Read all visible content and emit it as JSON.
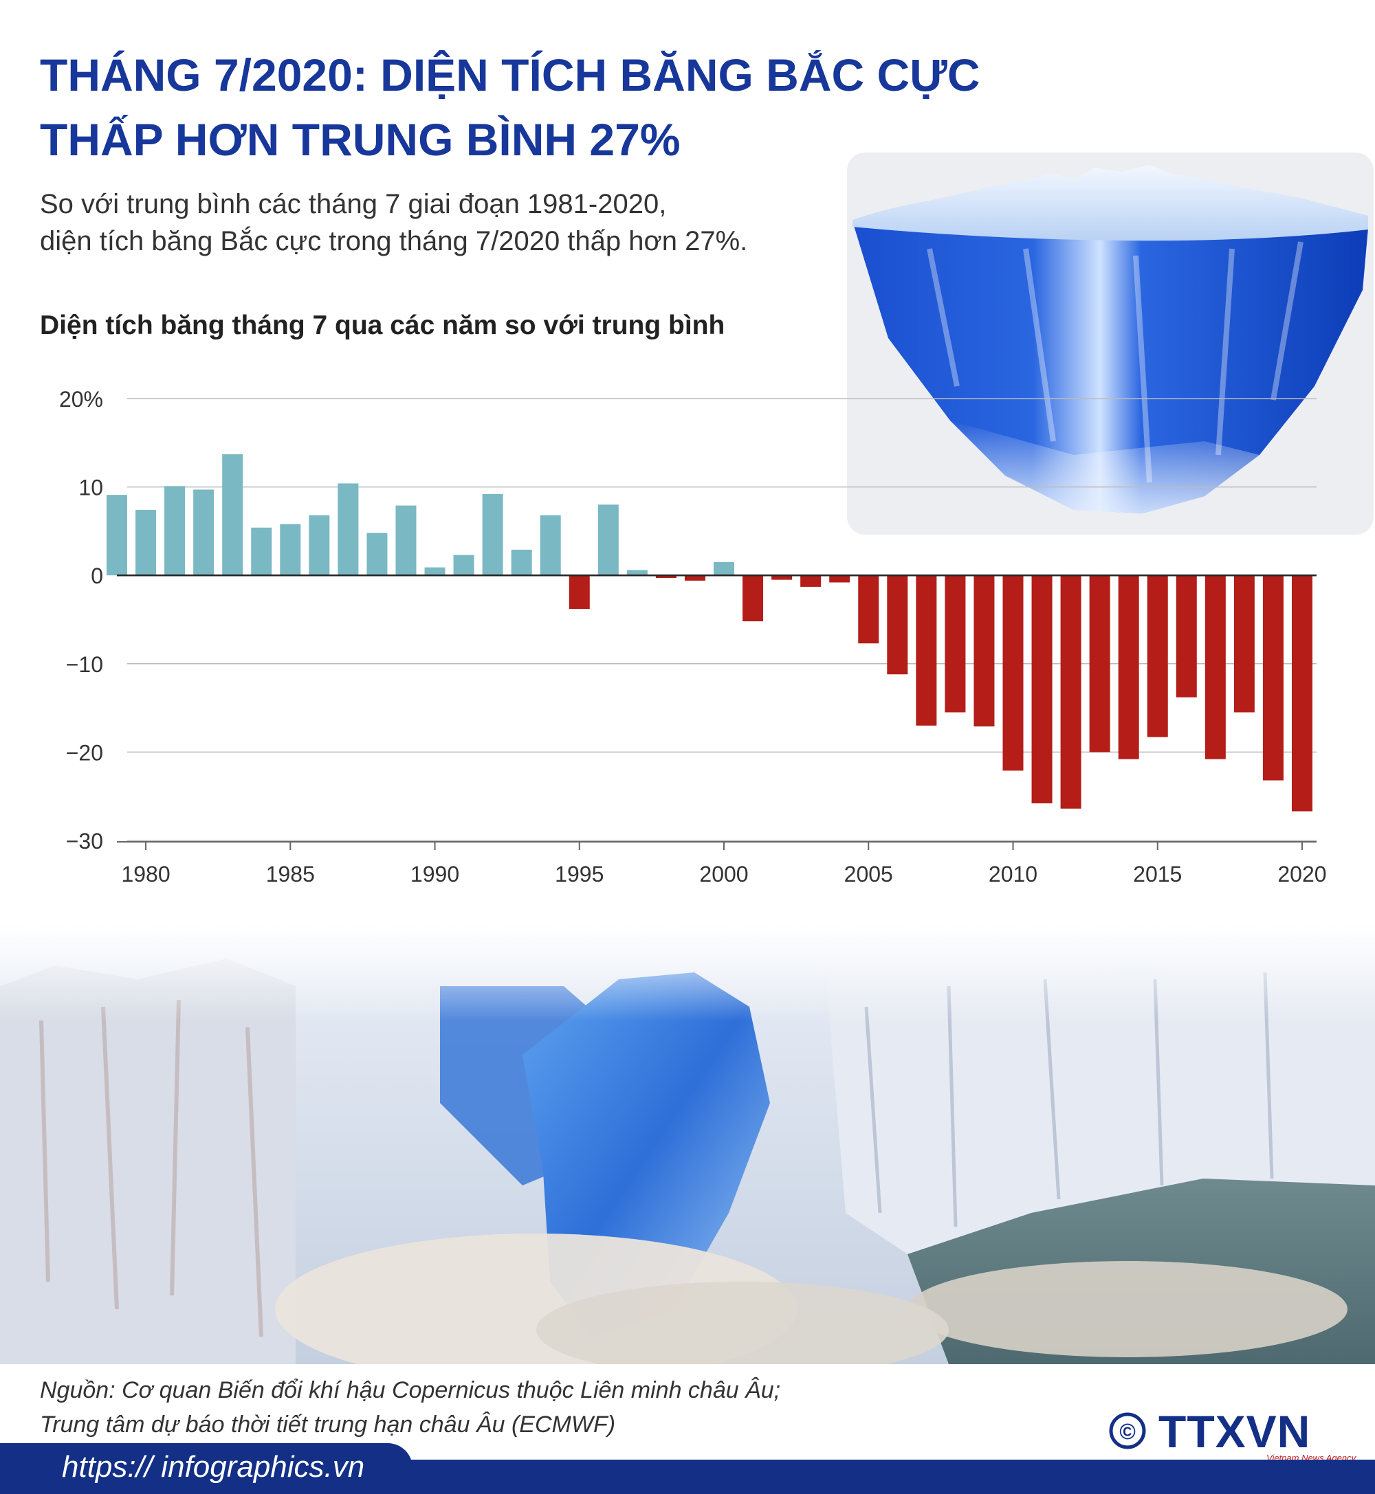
{
  "header": {
    "title_line1": "THÁNG 7/2020: DIỆN TÍCH BĂNG BẮC CỰC",
    "title_line2": "THẤP HƠN TRUNG BÌNH 27%",
    "subtitle_line1": "So với trung bình các tháng 7 giai đoạn 1981-2020,",
    "subtitle_line2": "diện tích băng Bắc cực trong tháng 7/2020 thấp hơn 27%."
  },
  "chart_data": {
    "type": "bar",
    "title": "Diện tích băng tháng 7 qua các năm so với trung bình",
    "xlabel": "",
    "ylabel": "",
    "ylim": [
      -30,
      20
    ],
    "xlim": [
      1979.5,
      2021
    ],
    "x": [
      1979,
      1980,
      1981,
      1982,
      1983,
      1984,
      1985,
      1986,
      1987,
      1988,
      1989,
      1990,
      1991,
      1992,
      1993,
      1994,
      1995,
      1996,
      1997,
      1998,
      1999,
      2000,
      2001,
      2002,
      2003,
      2004,
      2005,
      2006,
      2007,
      2008,
      2009,
      2010,
      2011,
      2012,
      2013,
      2014,
      2015,
      2016,
      2017,
      2018,
      2019,
      2020
    ],
    "values": [
      9.1,
      7.4,
      10.1,
      9.7,
      13.7,
      5.4,
      5.8,
      6.8,
      10.4,
      4.8,
      7.9,
      0.9,
      2.3,
      9.2,
      2.9,
      6.8,
      -3.8,
      8.0,
      0.6,
      -0.3,
      -0.6,
      1.5,
      -5.2,
      -0.5,
      -1.3,
      -0.8,
      -7.7,
      -11.2,
      -17.0,
      -15.5,
      -17.1,
      -22.1,
      -25.8,
      -26.4,
      -20.0,
      -20.8,
      -18.3,
      -13.8,
      -20.8,
      -15.5,
      -23.2,
      -26.7
    ],
    "xticks": [
      "1980",
      "1985",
      "1990",
      "1995",
      "2000",
      "2005",
      "2010",
      "2015",
      "2020"
    ],
    "xtick_values": [
      1980,
      1985,
      1990,
      1995,
      2000,
      2005,
      2010,
      2015,
      2020
    ],
    "yticks": [
      "20%",
      "10",
      "0",
      "−10",
      "−20",
      "−30"
    ],
    "ytick_values": [
      20,
      10,
      0,
      -10,
      -20,
      -30
    ],
    "colors": {
      "positive": "#7ab8c3",
      "negative": "#b41d18",
      "grid": "#bbbbbb"
    },
    "grid": true
  },
  "footer": {
    "source_line1": "Nguồn: Cơ quan Biến đổi khí hậu Copernicus thuộc Liên minh châu Âu;",
    "source_line2": "Trung tâm dự báo thời tiết trung hạn châu Âu (ECMWF)",
    "url": "https:// infographics.vn",
    "logo_text": "TTXVN",
    "logo_sub": "Vietnam News Agency",
    "copyright_symbol": "©"
  },
  "colors": {
    "title": "#17379a",
    "footer_bar": "#132f86",
    "logo": "#132f86",
    "logo_sub": "#c8201d"
  },
  "images": {
    "iceberg": "iceberg-illustration",
    "glacier": "glacier-calving-photo"
  }
}
